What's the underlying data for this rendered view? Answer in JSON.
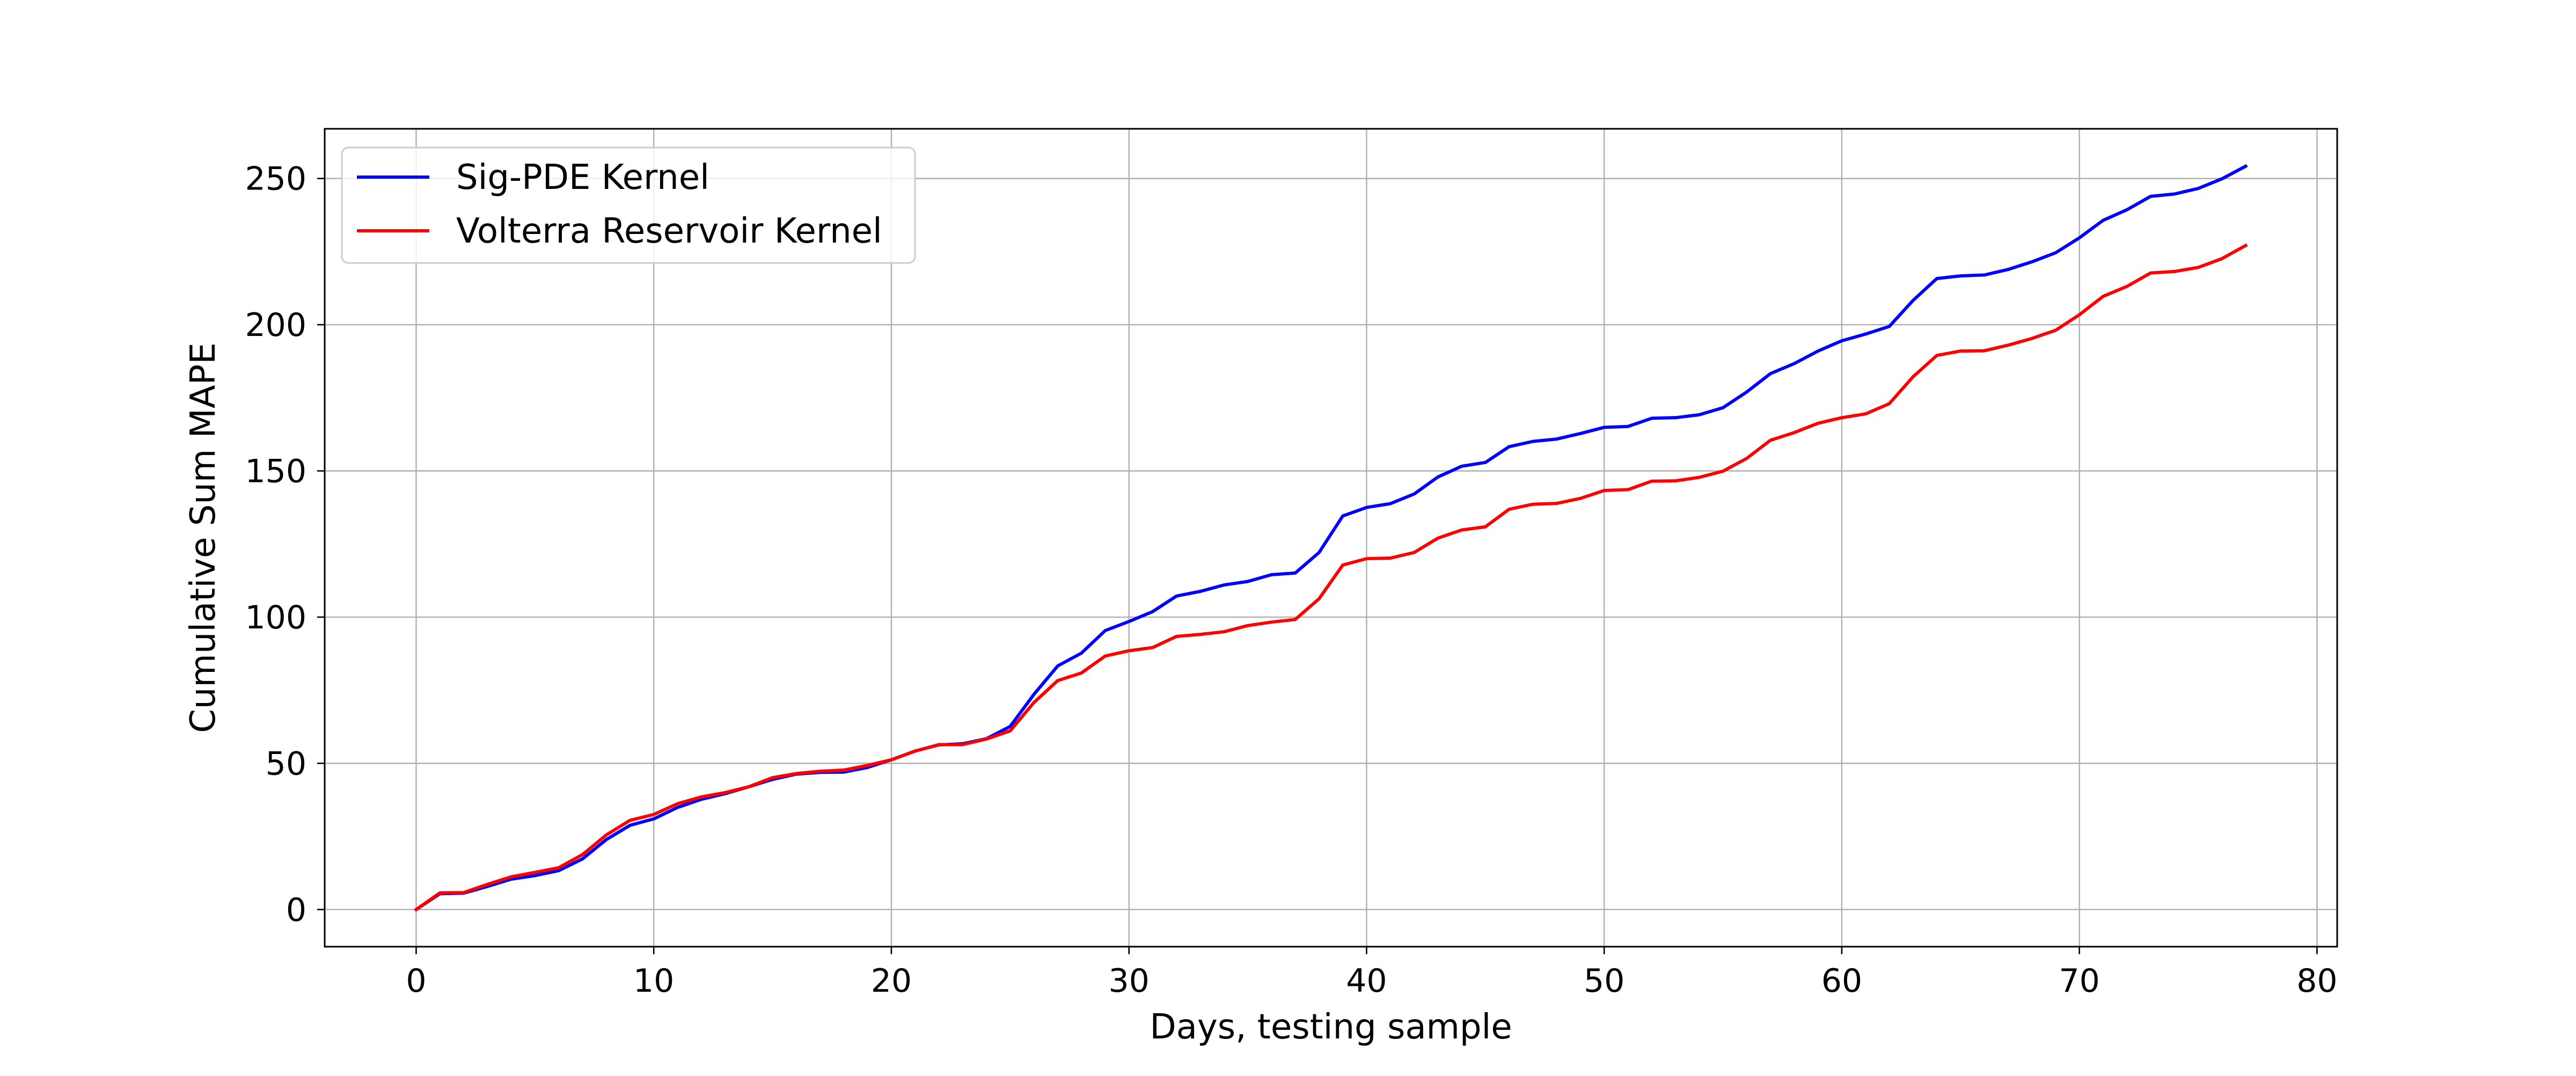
{
  "chart_data": {
    "type": "line",
    "title": "",
    "xlabel": "Days, testing sample",
    "ylabel": "Cumulative Sum MAPE",
    "xlim": [
      -3.85,
      80.85
    ],
    "ylim": [
      -12.7,
      267
    ],
    "x_ticks": [
      0,
      10,
      20,
      30,
      40,
      50,
      60,
      70,
      80
    ],
    "y_ticks": [
      0,
      50,
      100,
      150,
      200,
      250
    ],
    "x_tick_labels": [
      "0",
      "10",
      "20",
      "30",
      "40",
      "50",
      "60",
      "70",
      "80"
    ],
    "y_tick_labels": [
      "0",
      "50",
      "100",
      "150",
      "200",
      "250"
    ],
    "grid": true,
    "legend_position": "upper left",
    "series": [
      {
        "name": "Sig-PDE Kernel",
        "color": "#0000ff",
        "x": [
          0,
          1,
          2,
          3,
          4,
          5,
          6,
          7,
          8,
          9,
          10,
          11,
          12,
          13,
          14,
          15,
          16,
          17,
          18,
          19,
          20,
          21,
          22,
          23,
          24,
          25,
          26,
          27,
          28,
          29,
          30,
          31,
          32,
          33,
          34,
          35,
          36,
          37,
          38,
          39,
          40,
          41,
          42,
          43,
          44,
          45,
          46,
          47,
          48,
          49,
          50,
          51,
          52,
          53,
          54,
          55,
          56,
          57,
          58,
          59,
          60,
          61,
          62,
          63,
          64,
          65,
          66,
          67,
          68,
          69,
          70,
          71,
          72,
          73,
          74,
          75,
          76,
          77
        ],
        "y": [
          0,
          5.4,
          5.6,
          7.9,
          10.4,
          11.6,
          13.3,
          17.3,
          23.9,
          28.8,
          31.0,
          34.9,
          37.7,
          39.6,
          42.0,
          44.5,
          46.3,
          46.9,
          47.0,
          48.6,
          51.2,
          54.2,
          56.3,
          56.7,
          58.4,
          62.6,
          73.6,
          83.3,
          87.7,
          95.4,
          98.5,
          101.9,
          107.2,
          108.8,
          111.0,
          112.2,
          114.5,
          115.1,
          122.1,
          134.6,
          137.5,
          138.8,
          142.1,
          147.9,
          151.6,
          152.9,
          158.3,
          160.1,
          160.9,
          162.8,
          164.9,
          165.2,
          168.0,
          168.2,
          169.2,
          171.6,
          177.0,
          183.3,
          186.7,
          191.0,
          194.5,
          196.8,
          199.4,
          208.3,
          215.8,
          216.7,
          217.0,
          218.9,
          221.5,
          224.6,
          229.7,
          235.7,
          239.3,
          243.9,
          244.7,
          246.6,
          249.9,
          254.2
        ]
      },
      {
        "name": "Volterra Reservoir Kernel",
        "color": "#ff0000",
        "x": [
          0,
          1,
          2,
          3,
          4,
          5,
          6,
          7,
          8,
          9,
          10,
          11,
          12,
          13,
          14,
          15,
          16,
          17,
          18,
          19,
          20,
          21,
          22,
          23,
          24,
          25,
          26,
          27,
          28,
          29,
          30,
          31,
          32,
          33,
          34,
          35,
          36,
          37,
          38,
          39,
          40,
          41,
          42,
          43,
          44,
          45,
          46,
          47,
          48,
          49,
          50,
          51,
          52,
          53,
          54,
          55,
          56,
          57,
          58,
          59,
          60,
          61,
          62,
          63,
          64,
          65,
          66,
          67,
          68,
          69,
          70,
          71,
          72,
          73,
          74,
          75,
          76,
          77
        ],
        "y": [
          0,
          5.7,
          5.8,
          8.6,
          11.2,
          12.7,
          14.3,
          18.8,
          25.5,
          30.5,
          32.5,
          36.2,
          38.5,
          40.0,
          42.0,
          45.1,
          46.5,
          47.3,
          47.7,
          49.3,
          51.2,
          54.2,
          56.4,
          56.4,
          58.3,
          61.1,
          70.8,
          78.3,
          80.9,
          86.7,
          88.5,
          89.6,
          93.4,
          94.1,
          95.0,
          97.1,
          98.3,
          99.2,
          106.3,
          117.8,
          120.0,
          120.2,
          122.1,
          127.0,
          129.8,
          130.9,
          136.9,
          138.6,
          138.9,
          140.6,
          143.3,
          143.6,
          146.5,
          146.6,
          147.8,
          149.9,
          154.3,
          160.5,
          163.1,
          166.3,
          168.2,
          169.5,
          173.0,
          182.2,
          189.5,
          191.0,
          191.1,
          193.0,
          195.3,
          198.1,
          203.4,
          209.7,
          213.1,
          217.7,
          218.2,
          219.6,
          222.6,
          227.1
        ]
      }
    ]
  }
}
